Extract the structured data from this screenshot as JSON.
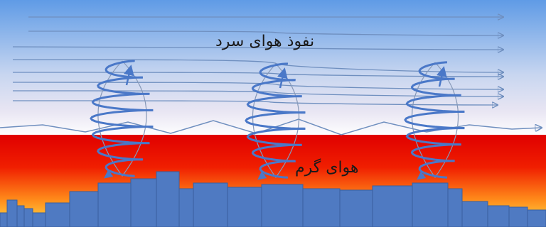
{
  "labels": {
    "cold_air": "نفوذ هوای سرد",
    "warm_air": "هوای گرم"
  },
  "colors": {
    "sky_top": "#5f9be6",
    "sky_mid": "#e9e6f3",
    "sky_bottom": "#ffffff",
    "hot_top": "#e00000",
    "hot_mid": "#ff7a1a",
    "hot_bottom": "#ffe24a",
    "flow_line": "#6f8fbf",
    "helix": "#4a78c8",
    "helix_outline": "#8799b8",
    "building_fill": "#4f7ac2",
    "building_stroke": "#3a5f9e"
  },
  "icons": {
    "vortex": "helix-vortex-icon",
    "flow_arrow": "arrow-right-icon"
  }
}
